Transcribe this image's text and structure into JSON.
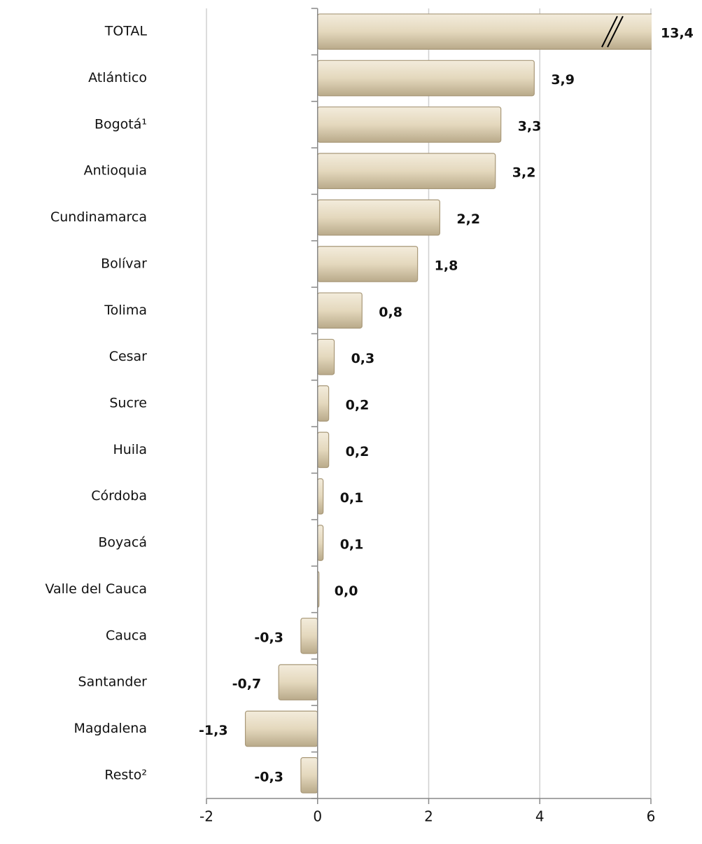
{
  "chart_data": {
    "type": "hbar",
    "categories": [
      "TOTAL",
      "Atlántico",
      "Bogotá¹",
      "Antioquia",
      "Cundinamarca",
      "Bolívar",
      "Tolima",
      "Cesar",
      "Sucre",
      "Huila",
      "Córdoba",
      "Boyacá",
      "Valle del Cauca",
      "Cauca",
      "Santander",
      "Magdalena",
      "Resto²"
    ],
    "values": [
      13.4,
      3.9,
      3.3,
      3.2,
      2.2,
      1.8,
      0.8,
      0.3,
      0.2,
      0.2,
      0.1,
      0.1,
      0.0,
      -0.3,
      -0.7,
      -1.3,
      -0.3
    ],
    "value_labels": [
      "13,4",
      "3,9",
      "3,3",
      "3,2",
      "2,2",
      "1,8",
      "0,8",
      "0,3",
      "0,2",
      "0,2",
      "0,1",
      "0,1",
      "0,0",
      "-0,3",
      "-0,7",
      "-1,3",
      "-0,3"
    ],
    "color": "#e6dcc4",
    "xlim": [
      -2,
      6
    ],
    "xticks": [
      -2,
      0,
      2,
      4,
      6
    ],
    "grid": true
  }
}
